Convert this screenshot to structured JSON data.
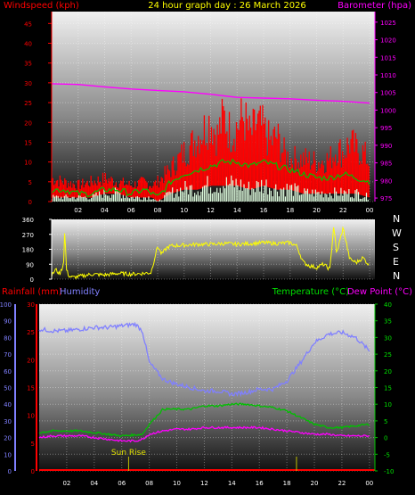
{
  "header": {
    "windspeed": "Windspeed (kph)",
    "title": "24 hour graph day : 26 March 2026",
    "barometer": "Barometer (hpa)"
  },
  "panel2": {
    "dirs": [
      "N",
      "W",
      "S",
      "E",
      "N"
    ]
  },
  "panel3": {
    "rainfall": "Rainfall (mm)",
    "humidity": "Humidity",
    "temperature": "Temperature (°C)",
    "dewpoint": "Dew Point (°C)",
    "sunrise": "Sun Rise"
  },
  "colors": {
    "windspeed": "#ff0000",
    "gust": "#ff0000",
    "wind_avg": "#00c000",
    "wind_low": "#e0ffe0",
    "barometer": "#ff00ff",
    "direction": "#ffff00",
    "humidity": "#8080ff",
    "temperature": "#00c000",
    "dewpoint": "#ff00ff",
    "rainfall": "#ff0000",
    "sunrise": "#c0c000"
  },
  "chart_data": [
    {
      "type": "line",
      "name": "wind",
      "x_ticks": [
        "02",
        "04",
        "06",
        "08",
        "10",
        "12",
        "14",
        "16",
        "18",
        "20",
        "22",
        "00"
      ],
      "y_ticks": [
        0,
        5,
        10,
        15,
        20,
        25,
        30,
        35,
        40,
        45
      ],
      "y2_ticks": [
        975,
        980,
        985,
        990,
        995,
        1000,
        1005,
        1010,
        1015,
        1020,
        1025
      ],
      "ylim": [
        0,
        48
      ],
      "y2lim": [
        974,
        1028
      ],
      "xlim": [
        0,
        24.4
      ],
      "series": [
        {
          "key": "gust",
          "x": [
            0,
            1,
            2,
            3,
            4,
            5,
            6,
            7,
            7.6,
            8,
            9,
            10,
            10.5,
            11,
            11.5,
            12,
            12.5,
            13,
            13.5,
            14,
            14.5,
            15,
            15.5,
            16,
            16.5,
            17,
            17.5,
            18,
            19,
            20,
            21,
            21.5,
            22,
            22.5,
            23,
            23.5,
            24
          ],
          "values": [
            7,
            6,
            5,
            6,
            7,
            6,
            5,
            6,
            5,
            6,
            10,
            15,
            17,
            20,
            22,
            25,
            20,
            26,
            21,
            23,
            26,
            20,
            24,
            22,
            18,
            20,
            15,
            13,
            13,
            12,
            13,
            16,
            15,
            18,
            16,
            15,
            12
          ]
        },
        {
          "key": "wind_avg",
          "x": [
            0,
            1,
            2,
            3,
            4,
            5,
            6,
            7,
            7.6,
            8,
            9,
            10,
            11,
            12,
            13,
            14,
            15,
            16,
            17,
            18,
            19,
            20,
            21,
            22,
            23,
            24
          ],
          "values": [
            3,
            3,
            2,
            2,
            3,
            3,
            2,
            3,
            2,
            1,
            5,
            7,
            8,
            9,
            10,
            10,
            9,
            10,
            9,
            8,
            7,
            6,
            6,
            7,
            6,
            5
          ]
        },
        {
          "key": "wind_low",
          "x": [
            0,
            1,
            2,
            3,
            4,
            5,
            6,
            7,
            7.6,
            8,
            9,
            10,
            11,
            12,
            13,
            14,
            15,
            16,
            17,
            18,
            19,
            20,
            21,
            22,
            23,
            24
          ],
          "values": [
            1,
            1,
            1,
            1,
            2,
            2,
            1,
            1,
            1,
            0,
            2,
            3,
            3,
            4,
            4,
            4,
            3,
            4,
            3,
            3,
            2,
            2,
            2,
            2,
            2,
            1
          ]
        },
        {
          "key": "barometer",
          "x": [
            0,
            2,
            4,
            6,
            8,
            10,
            12,
            14,
            16,
            18,
            20,
            22,
            24
          ],
          "values": [
            1007.5,
            1007.3,
            1006.6,
            1006,
            1005.6,
            1005.2,
            1004.5,
            1003.6,
            1003.4,
            1003.2,
            1002.8,
            1002.5,
            1002
          ]
        }
      ]
    },
    {
      "type": "line",
      "name": "direction",
      "y_ticks": [
        0,
        90,
        180,
        270,
        360
      ],
      "ylim": [
        0,
        360
      ],
      "xlim": [
        0,
        24.4
      ],
      "series": [
        {
          "key": "direction",
          "x": [
            0,
            0.3,
            0.6,
            0.9,
            1.0,
            1.1,
            1.3,
            1.6,
            2,
            3,
            4,
            5,
            6,
            7,
            7.5,
            8,
            8.3,
            8.7,
            9,
            10,
            11,
            12,
            13,
            14,
            15,
            16,
            17,
            18,
            18.5,
            19,
            19.5,
            20,
            20.5,
            21,
            21.3,
            21.5,
            22,
            22.5,
            23,
            23.5,
            24
          ],
          "values": [
            20,
            60,
            30,
            90,
            320,
            60,
            20,
            10,
            15,
            30,
            25,
            35,
            30,
            35,
            40,
            200,
            150,
            190,
            200,
            205,
            210,
            210,
            215,
            210,
            215,
            220,
            215,
            220,
            200,
            100,
            80,
            70,
            90,
            60,
            330,
            150,
            310,
            120,
            100,
            130,
            80
          ]
        }
      ]
    },
    {
      "type": "line",
      "name": "temperature_humidity",
      "y_ticks_humidity": [
        0,
        10,
        20,
        30,
        40,
        50,
        60,
        70,
        80,
        90,
        100
      ],
      "y_ticks_rain": [
        0,
        5,
        10,
        15,
        20,
        25,
        30
      ],
      "y_ticks_temp": [
        -10,
        -5,
        0,
        5,
        10,
        15,
        20,
        25,
        30,
        35,
        40
      ],
      "humidity_lim": [
        0,
        100
      ],
      "temp_lim": [
        -10,
        40
      ],
      "xlim": [
        0,
        24.4
      ],
      "series": [
        {
          "key": "humidity",
          "x": [
            0,
            1,
            2,
            3,
            4,
            5,
            6,
            7,
            7.5,
            8,
            9,
            10,
            11,
            12,
            13,
            14,
            15,
            16,
            17,
            18,
            19,
            20,
            21,
            22,
            23,
            24
          ],
          "values": [
            85,
            84,
            84,
            85,
            86,
            86,
            87,
            88,
            84,
            65,
            55,
            52,
            50,
            48,
            48,
            46,
            47,
            49,
            49,
            54,
            65,
            77,
            82,
            83,
            80,
            72
          ]
        },
        {
          "key": "temperature",
          "x": [
            0,
            1,
            2,
            3,
            4,
            5,
            6,
            7,
            7.5,
            8,
            9,
            10,
            11,
            12,
            13,
            14,
            15,
            16,
            17,
            18,
            19,
            20,
            21,
            22,
            23,
            24
          ],
          "values": [
            1.5,
            2,
            2,
            2,
            1.5,
            1,
            0.5,
            0.8,
            1,
            4,
            8.5,
            8.5,
            8.5,
            9.5,
            9.5,
            10,
            10,
            9.5,
            9,
            8,
            6,
            4,
            3,
            3,
            3.5,
            4
          ]
        },
        {
          "key": "dewpoint",
          "x": [
            0,
            1,
            2,
            3,
            4,
            5,
            6,
            7,
            7.5,
            8,
            9,
            10,
            11,
            12,
            13,
            14,
            15,
            16,
            17,
            18,
            19,
            20,
            21,
            22,
            23,
            24
          ],
          "values": [
            0,
            0.5,
            0.5,
            0.5,
            0,
            -0.5,
            -1,
            -1,
            -0.5,
            1,
            2,
            2.5,
            2.5,
            3,
            3,
            3,
            3,
            3,
            2.5,
            2,
            1.5,
            1,
            1,
            0.5,
            0.5,
            0.5
          ]
        },
        {
          "key": "rainfall",
          "x": [
            0,
            24.4
          ],
          "values": [
            0,
            0
          ]
        }
      ],
      "sunrise_x": 6.5,
      "sunset_x": 18.7
    }
  ]
}
